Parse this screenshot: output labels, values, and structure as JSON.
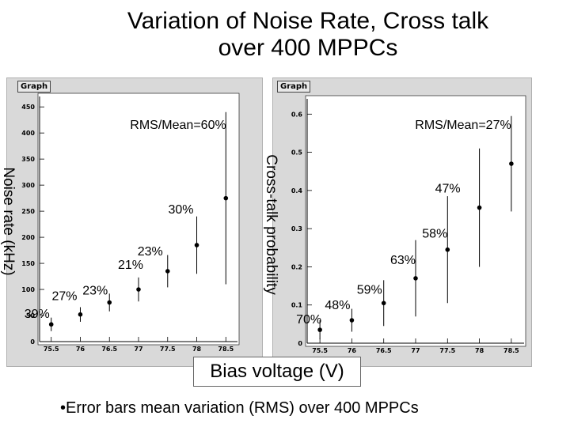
{
  "title_line1": "Variation of Noise Rate, Cross talk",
  "title_line2": "over 400 MPPCs",
  "graph_tab_label": "Graph",
  "xlabel_box": "Bias voltage (V)",
  "bullet_note": "•Error bars mean variation (RMS) over 400 MPPCs",
  "chart_data": [
    {
      "type": "scatter",
      "name": "noise-rate",
      "ylabel": "Noise rate (kHz)",
      "rms_note": "RMS/Mean=60%",
      "x": [
        75.5,
        76,
        76.5,
        77,
        77.5,
        78,
        78.5
      ],
      "y": [
        33,
        52,
        75,
        100,
        135,
        185,
        275
      ],
      "yerr": [
        13,
        14,
        17,
        23,
        31,
        55,
        165
      ],
      "point_labels": [
        "39%",
        "27%",
        "23%",
        "21%",
        "23%",
        "30%",
        ""
      ],
      "xlim": [
        75.3,
        78.7
      ],
      "ylim": [
        0,
        470
      ],
      "xticks": [
        "75.5",
        "76",
        "76.5",
        "77",
        "77.5",
        "78",
        "78.5"
      ],
      "yticks": [
        "0",
        "50",
        "100",
        "150",
        "200",
        "250",
        "300",
        "350",
        "400",
        "450"
      ]
    },
    {
      "type": "scatter",
      "name": "cross-talk",
      "ylabel": "Cross-talk probability",
      "rms_note": "RMS/Mean=27%",
      "x": [
        75.5,
        76,
        76.5,
        77,
        77.5,
        78,
        78.5
      ],
      "y": [
        0.035,
        0.06,
        0.105,
        0.17,
        0.245,
        0.355,
        0.47
      ],
      "yerr": [
        0.025,
        0.03,
        0.06,
        0.1,
        0.14,
        0.155,
        0.125
      ],
      "point_labels": [
        "70%",
        "48%",
        "59%",
        "63%",
        "58%",
        "47%",
        ""
      ],
      "xlim": [
        75.3,
        78.7
      ],
      "ylim": [
        0,
        0.64
      ],
      "xticks": [
        "75.5",
        "76",
        "76.5",
        "77",
        "77.5",
        "78",
        "78.5"
      ],
      "yticks": [
        "0",
        "0.1",
        "0.2",
        "0.3",
        "0.4",
        "0.5",
        "0.6"
      ]
    }
  ]
}
